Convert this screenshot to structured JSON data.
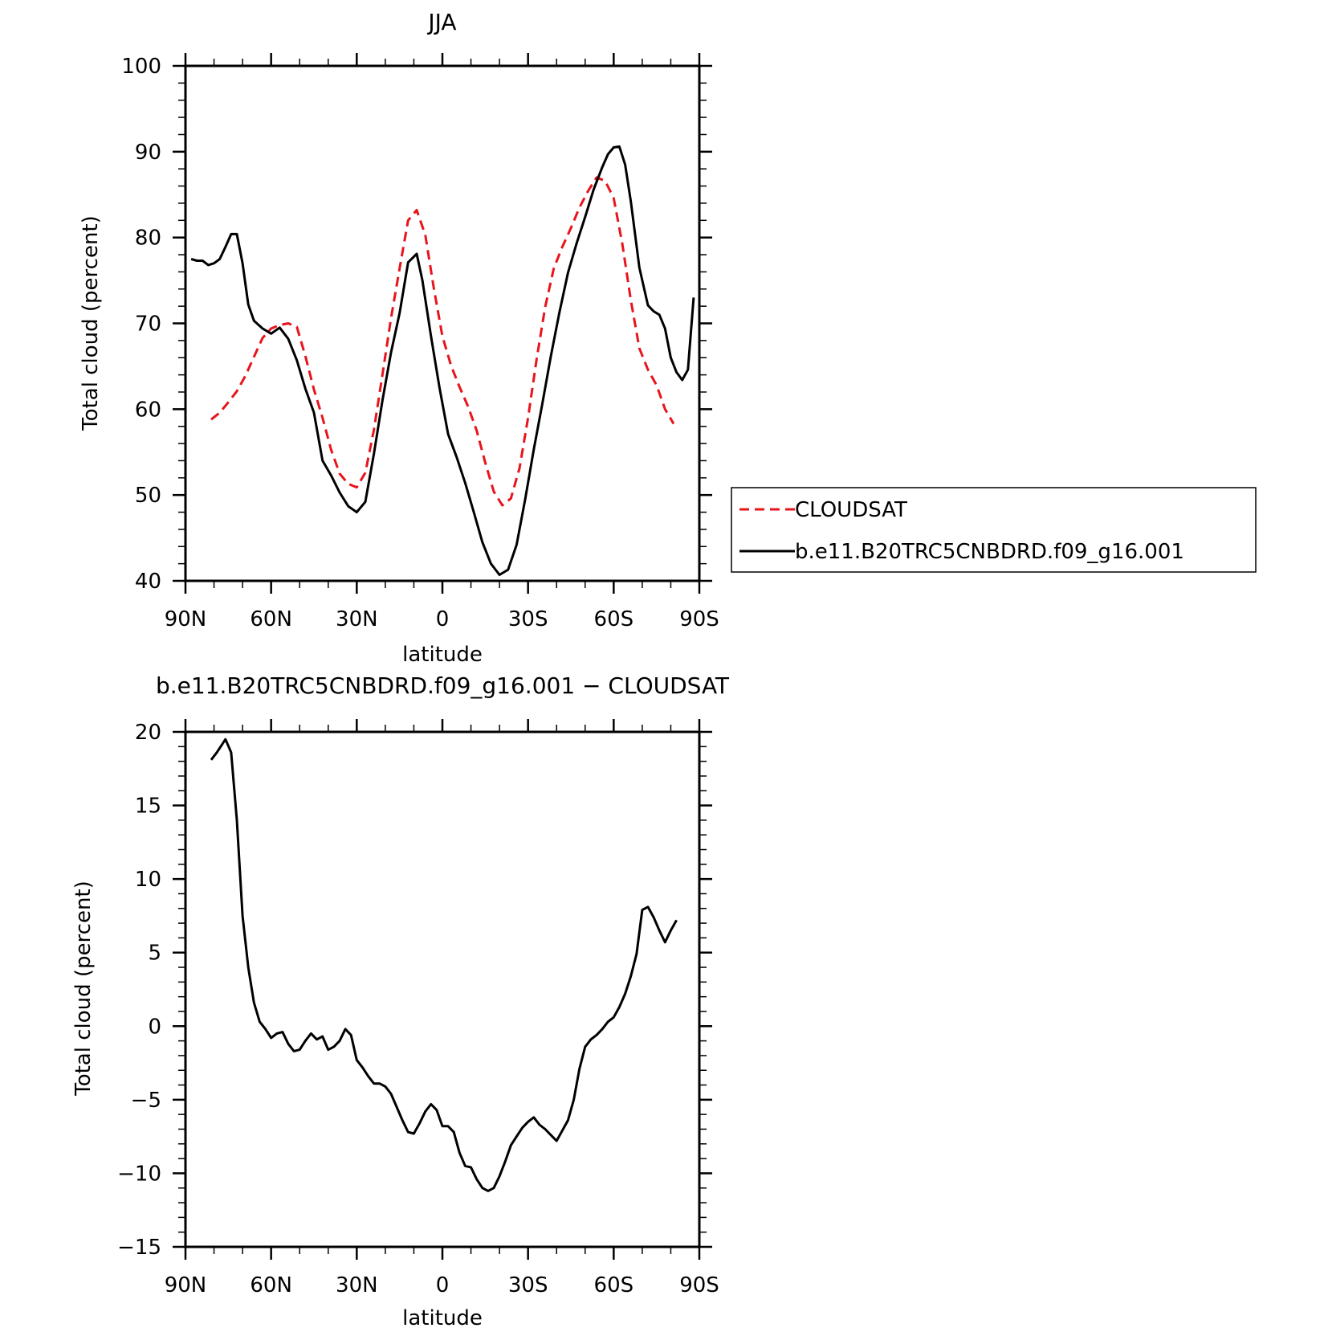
{
  "chart_data": [
    {
      "type": "line",
      "title": "JJA",
      "xlabel": "latitude",
      "ylabel": "Total cloud (percent)",
      "xlim": [
        90,
        -90
      ],
      "ylim": [
        40,
        100
      ],
      "x_ticks": [
        90,
        60,
        30,
        0,
        -30,
        -60,
        -90
      ],
      "x_tick_labels": [
        "90N",
        "60N",
        "30N",
        "0",
        "30S",
        "60S",
        "90S"
      ],
      "y_ticks": [
        40,
        50,
        60,
        70,
        80,
        90,
        100
      ],
      "y_tick_labels": [
        "40",
        "50",
        "60",
        "70",
        "80",
        "90",
        "100"
      ],
      "legend_position": "right",
      "series": [
        {
          "name": "CLOUDSAT",
          "color": "#e8141c",
          "dash": "dashed",
          "x": [
            81,
            78,
            75,
            72,
            69,
            66,
            63,
            60,
            57,
            54,
            51,
            48,
            45,
            42,
            39,
            36,
            33,
            30,
            27,
            24,
            21,
            18,
            15,
            12,
            9,
            6,
            3,
            0,
            -3,
            -6,
            -9,
            -12,
            -15,
            -18,
            -21,
            -24,
            -27,
            -30,
            -33,
            -36,
            -39,
            -42,
            -45,
            -48,
            -51,
            -54,
            -57,
            -60,
            -63,
            -66,
            -69,
            -72,
            -75,
            -78,
            -81
          ],
          "y": [
            58.8,
            59.6,
            60.8,
            62.1,
            63.9,
            66.1,
            68.3,
            69.4,
            69.8,
            70.0,
            69.6,
            66.2,
            62.3,
            59.0,
            55.3,
            52.5,
            51.3,
            50.9,
            52.6,
            57.6,
            64.0,
            70.6,
            76.4,
            82.0,
            83.2,
            80.3,
            74.1,
            68.5,
            65.1,
            62.6,
            60.3,
            57.5,
            53.8,
            50.4,
            48.8,
            49.6,
            53.1,
            59.0,
            65.8,
            71.9,
            76.4,
            78.9,
            81.1,
            83.5,
            85.4,
            87.0,
            86.6,
            84.6,
            79.3,
            72.7,
            67.1,
            64.6,
            62.8,
            60.0,
            58.3
          ]
        },
        {
          "name": "b.e11.B20TRC5CNBDRD.f09_g16.001",
          "color": "#000000",
          "dash": "solid",
          "x": [
            88,
            86,
            84,
            82,
            80,
            78,
            76,
            74,
            72,
            70,
            68,
            66,
            63,
            60,
            57,
            54,
            51,
            48,
            45,
            42,
            39,
            36,
            33,
            30,
            27,
            24,
            21,
            18,
            15,
            12,
            9,
            7,
            4,
            1,
            -2,
            -5,
            -8,
            -11,
            -14,
            -17,
            -20,
            -23,
            -26,
            -29,
            -32,
            -35,
            -38,
            -41,
            -44,
            -47,
            -50,
            -53,
            -56,
            -58,
            -60,
            -62,
            -64,
            -66,
            -69,
            -72,
            -74,
            -76,
            -78,
            -80,
            -82,
            -84,
            -86,
            -88
          ],
          "y": [
            77.5,
            77.3,
            77.3,
            76.8,
            77.0,
            77.5,
            78.9,
            80.4,
            80.4,
            77.0,
            72.2,
            70.3,
            69.4,
            68.8,
            69.5,
            68.2,
            65.7,
            62.4,
            59.6,
            54.0,
            52.3,
            50.3,
            48.7,
            48.0,
            49.2,
            54.8,
            61.0,
            66.6,
            71.2,
            77.1,
            78.1,
            75.0,
            68.5,
            62.5,
            57.1,
            54.4,
            51.4,
            48.0,
            44.5,
            42.0,
            40.7,
            41.3,
            44.2,
            49.5,
            55.3,
            60.6,
            66.2,
            71.3,
            75.9,
            79.3,
            82.4,
            85.6,
            88.2,
            89.7,
            90.5,
            90.6,
            88.5,
            84.2,
            76.5,
            72.1,
            71.4,
            71.0,
            69.4,
            66.0,
            64.3,
            63.4,
            64.6,
            73.0
          ]
        }
      ]
    },
    {
      "type": "line",
      "title": "b.e11.B20TRC5CNBDRD.f09_g16.001 − CLOUDSAT",
      "xlabel": "latitude",
      "ylabel": "Total cloud (percent)",
      "xlim": [
        90,
        -90
      ],
      "ylim": [
        -15,
        20
      ],
      "x_ticks": [
        90,
        60,
        30,
        0,
        -30,
        -60,
        -90
      ],
      "x_tick_labels": [
        "90N",
        "60N",
        "30N",
        "0",
        "30S",
        "60S",
        "90S"
      ],
      "y_ticks": [
        -15,
        -10,
        -5,
        0,
        5,
        10,
        15,
        20
      ],
      "y_tick_labels": [
        "−15",
        "−10",
        "−5",
        "0",
        "5",
        "10",
        "15",
        "20"
      ],
      "series": [
        {
          "color": "#000000",
          "dash": "solid",
          "x": [
            81,
            79,
            76,
            74,
            72,
            70,
            68,
            66,
            64,
            62,
            60,
            58,
            56,
            54,
            52,
            50,
            48,
            46,
            44,
            42,
            40,
            38,
            36,
            34,
            32,
            30,
            28,
            26,
            24,
            22,
            20,
            18,
            16,
            14,
            12,
            10,
            8,
            6,
            4,
            2,
            0,
            -2,
            -4,
            -6,
            -8,
            -10,
            -12,
            -14,
            -16,
            -18,
            -20,
            -22,
            -24,
            -26,
            -28,
            -30,
            -32,
            -34,
            -36,
            -38,
            -40,
            -42,
            -44,
            -46,
            -48,
            -50,
            -52,
            -54,
            -56,
            -58,
            -60,
            -62,
            -64,
            -66,
            -68,
            -70,
            -72,
            -74,
            -76,
            -78,
            -80,
            -82
          ],
          "y": [
            18.1,
            18.6,
            19.5,
            18.6,
            14.0,
            7.5,
            4.0,
            1.6,
            0.3,
            -0.2,
            -0.8,
            -0.5,
            -0.4,
            -1.2,
            -1.7,
            -1.6,
            -1.0,
            -0.5,
            -0.9,
            -0.7,
            -1.6,
            -1.4,
            -1.0,
            -0.2,
            -0.6,
            -2.3,
            -2.8,
            -3.4,
            -3.9,
            -3.9,
            -4.1,
            -4.6,
            -5.5,
            -6.4,
            -7.2,
            -7.3,
            -6.6,
            -5.8,
            -5.3,
            -5.7,
            -6.8,
            -6.8,
            -7.2,
            -8.6,
            -9.5,
            -9.6,
            -10.4,
            -11.0,
            -11.2,
            -11.0,
            -10.2,
            -9.2,
            -8.1,
            -7.5,
            -6.9,
            -6.5,
            -6.2,
            -6.7,
            -7.0,
            -7.4,
            -7.8,
            -7.1,
            -6.4,
            -5.0,
            -2.9,
            -1.4,
            -0.9,
            -0.6,
            -0.2,
            0.3,
            0.6,
            1.3,
            2.2,
            3.4,
            4.9,
            7.9,
            8.1,
            7.4,
            6.5,
            5.7,
            6.5,
            7.2
          ]
        }
      ]
    }
  ]
}
